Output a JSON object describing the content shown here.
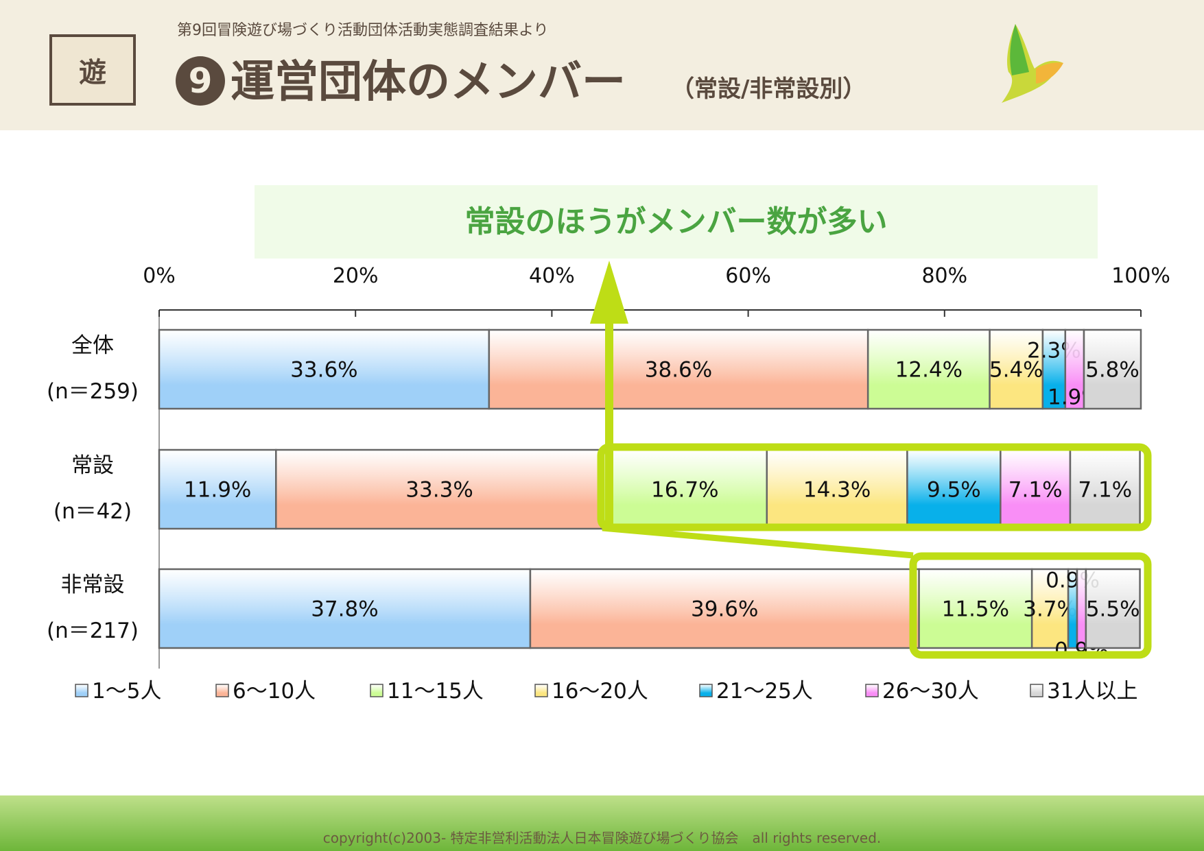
{
  "header": {
    "logo_text": "遊",
    "subtitle": "第9回冒険遊び場づくり活動団体活動実態調査結果より",
    "number": "9",
    "title": "運営団体のメンバー",
    "title_suffix": "（常設/非常設別）"
  },
  "callout": "常設のほうがメンバー数が多い",
  "footer": "copyright(c)2003- 特定非営利活動法人日本冒険遊び場づくり協会　all rights reserved.",
  "chart_data": {
    "type": "bar",
    "orientation": "horizontal",
    "stacked": "percent",
    "xlim": [
      0,
      100
    ],
    "xticks": [
      "0%",
      "20%",
      "40%",
      "60%",
      "80%",
      "100%"
    ],
    "legend_position": "bottom",
    "categories": [
      {
        "label": "全体",
        "n": "(n＝259)"
      },
      {
        "label": "常設",
        "n": "(n＝42)"
      },
      {
        "label": "非常設",
        "n": "(n＝217)"
      }
    ],
    "series": [
      {
        "name": "1～5人",
        "color": "#9fd0f8",
        "values": [
          33.6,
          11.9,
          37.8
        ]
      },
      {
        "name": "6～10人",
        "color": "#fbb497",
        "values": [
          38.6,
          33.3,
          39.6
        ]
      },
      {
        "name": "11～15人",
        "color": "#ccfc95",
        "values": [
          12.4,
          16.7,
          11.5
        ]
      },
      {
        "name": "16～20人",
        "color": "#fce680",
        "values": [
          5.4,
          14.3,
          3.7
        ]
      },
      {
        "name": "21～25人",
        "color": "#08b0ea",
        "values": [
          2.3,
          9.5,
          0.9
        ]
      },
      {
        "name": "26～30人",
        "color": "#f98ef6",
        "values": [
          1.9,
          7.1,
          0.9
        ]
      },
      {
        "name": "31人以上",
        "color": "#d6d6d6",
        "values": [
          5.8,
          7.1,
          5.5
        ]
      }
    ],
    "highlight_color": "#bedd16"
  }
}
